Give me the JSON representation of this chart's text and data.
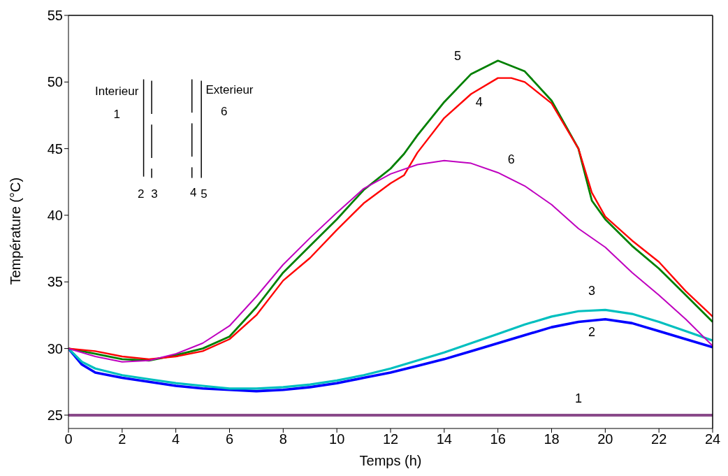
{
  "chart_data": {
    "type": "line",
    "xlabel": "Temps (h)",
    "ylabel": "Température (°C)",
    "xlim": [
      0,
      24
    ],
    "xticks": [
      0,
      2,
      4,
      6,
      8,
      10,
      12,
      14,
      16,
      18,
      20,
      22,
      24
    ],
    "ylim": [
      24,
      55
    ],
    "yticks": [
      25,
      30,
      35,
      40,
      45,
      50,
      55
    ],
    "grid": false,
    "legend": false,
    "marker": "none",
    "line_style": "solid",
    "annotations": [
      "Interieur",
      "1",
      "2",
      "3",
      "4",
      "5",
      "Exterieur",
      "6"
    ],
    "series": [
      {
        "name": "1",
        "color": "#8a4a8a",
        "x": [
          0,
          24
        ],
        "values": [
          25,
          25
        ]
      },
      {
        "name": "2",
        "color": "#0000ff",
        "x": [
          0,
          0.5,
          1,
          2,
          3,
          4,
          5,
          6,
          7,
          8,
          9,
          10,
          11,
          12,
          13,
          14,
          15,
          16,
          17,
          18,
          19,
          20,
          21,
          22,
          23,
          24
        ],
        "values": [
          30,
          28.8,
          28.2,
          27.8,
          27.5,
          27.2,
          27.0,
          26.9,
          26.8,
          26.9,
          27.1,
          27.4,
          27.8,
          28.2,
          28.7,
          29.2,
          29.8,
          30.4,
          31.0,
          31.6,
          32.0,
          32.2,
          31.9,
          31.3,
          30.7,
          30.1
        ]
      },
      {
        "name": "3",
        "color": "#00bfbf",
        "x": [
          0,
          0.5,
          1,
          2,
          3,
          4,
          5,
          6,
          7,
          8,
          9,
          10,
          11,
          12,
          13,
          14,
          15,
          16,
          17,
          18,
          19,
          20,
          21,
          22,
          23,
          24
        ],
        "values": [
          30,
          29.0,
          28.5,
          28.0,
          27.7,
          27.4,
          27.2,
          27.0,
          27.0,
          27.1,
          27.3,
          27.6,
          28.0,
          28.5,
          29.1,
          29.7,
          30.4,
          31.1,
          31.8,
          32.4,
          32.8,
          32.9,
          32.6,
          32.0,
          31.3,
          30.6
        ]
      },
      {
        "name": "5",
        "color": "#008000",
        "x": [
          0,
          1,
          2,
          3,
          4,
          5,
          6,
          7,
          8,
          9,
          10,
          11,
          12,
          12.5,
          13,
          14,
          15,
          16,
          17,
          18,
          19,
          19.5,
          20,
          21,
          22,
          23,
          24
        ],
        "values": [
          30,
          29.6,
          29.2,
          29.1,
          29.5,
          30.0,
          30.9,
          33.1,
          35.7,
          37.7,
          39.7,
          41.9,
          43.5,
          44.6,
          46.0,
          48.5,
          50.6,
          51.6,
          50.8,
          48.6,
          45.0,
          41.1,
          39.7,
          37.7,
          36.0,
          34.0,
          32.0
        ]
      },
      {
        "name": "4",
        "color": "#ff0000",
        "x": [
          0,
          1,
          2,
          3,
          4,
          5,
          6,
          7,
          8,
          9,
          10,
          11,
          12,
          12.5,
          13,
          14,
          15,
          16,
          16.5,
          17,
          18,
          19,
          19.5,
          20,
          21,
          22,
          23,
          24
        ],
        "values": [
          30,
          29.8,
          29.4,
          29.2,
          29.4,
          29.8,
          30.7,
          32.5,
          35.1,
          36.8,
          38.9,
          40.9,
          42.4,
          43.0,
          44.7,
          47.3,
          49.1,
          50.3,
          50.3,
          50.0,
          48.4,
          45.0,
          41.7,
          39.9,
          38.1,
          36.5,
          34.3,
          32.4
        ]
      },
      {
        "name": "6",
        "color": "#bf00bf",
        "x": [
          0,
          1,
          2,
          3,
          4,
          5,
          6,
          7,
          8,
          9,
          10,
          11,
          12,
          13,
          14,
          15,
          16,
          17,
          18,
          19,
          20,
          21,
          22,
          23,
          24
        ],
        "values": [
          30,
          29.4,
          29.0,
          29.1,
          29.6,
          30.4,
          31.7,
          33.9,
          36.3,
          38.3,
          40.2,
          42.0,
          43.1,
          43.8,
          44.1,
          43.9,
          43.2,
          42.2,
          40.8,
          39.0,
          37.6,
          35.7,
          34.0,
          32.2,
          30.2
        ]
      }
    ]
  }
}
